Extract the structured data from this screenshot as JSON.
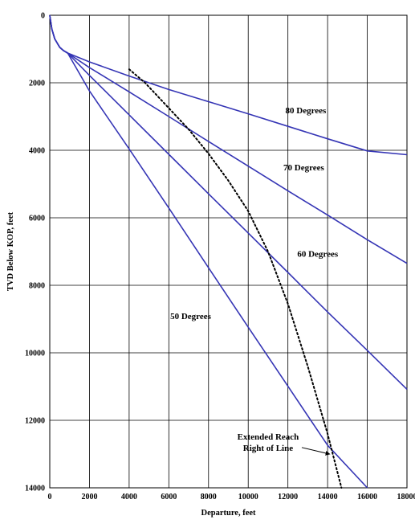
{
  "chart_data": {
    "type": "line",
    "title": "",
    "xlabel": "Departure, feet",
    "ylabel": "TVD Below KOP, feet",
    "xlim": [
      0,
      18000
    ],
    "ylim": [
      0,
      14000
    ],
    "y_inverted": true,
    "grid": true,
    "x_ticks": [
      "0",
      "2000",
      "4000",
      "6000",
      "8000",
      "10000",
      "12000",
      "14000",
      "16000",
      "18000"
    ],
    "y_ticks": [
      "0",
      "2000",
      "4000",
      "6000",
      "8000",
      "10000",
      "12000",
      "14000"
    ],
    "series": [
      {
        "name": "80 Degrees",
        "color": "#3535b5",
        "style": "solid",
        "x": [
          0,
          100,
          250,
          500,
          700,
          900,
          2000,
          4000,
          6000,
          8000,
          10000,
          12000,
          14000,
          16000,
          18000
        ],
        "y": [
          0,
          400,
          700,
          950,
          1050,
          1120,
          1380,
          1800,
          2200,
          2560,
          2920,
          3290,
          3660,
          4020,
          4130
        ]
      },
      {
        "name": "70 Degrees",
        "color": "#3535b5",
        "style": "solid",
        "x": [
          0,
          100,
          250,
          500,
          700,
          900,
          2000,
          4000,
          6000,
          8000,
          10000,
          12000,
          14000,
          16000,
          18000
        ],
        "y": [
          0,
          400,
          700,
          950,
          1050,
          1120,
          1550,
          2270,
          3000,
          3740,
          4470,
          5200,
          5920,
          6650,
          7350
        ]
      },
      {
        "name": "60 Degrees",
        "color": "#3535b5",
        "style": "solid",
        "x": [
          0,
          100,
          250,
          500,
          700,
          900,
          2000,
          4000,
          6000,
          8000,
          10000,
          12000,
          14000,
          16000,
          18000
        ],
        "y": [
          0,
          400,
          700,
          950,
          1050,
          1120,
          1780,
          2950,
          4120,
          5290,
          6450,
          7620,
          8790,
          9930,
          11080
        ]
      },
      {
        "name": "50 Degrees",
        "color": "#3535b5",
        "style": "solid",
        "x": [
          0,
          100,
          250,
          500,
          700,
          900,
          2000,
          4000,
          6000,
          8000,
          10000,
          12000,
          14000,
          16000
        ],
        "y": [
          0,
          400,
          700,
          950,
          1050,
          1120,
          2240,
          3960,
          5710,
          7480,
          9240,
          10990,
          12740,
          14000
        ]
      },
      {
        "name": "Extended Reach Right of Line",
        "color": "#000000",
        "style": "dotted",
        "x": [
          4000,
          4800,
          6000,
          7000,
          8000,
          9000,
          10000,
          11000,
          12000,
          13000,
          14000,
          14700
        ],
        "y": [
          1600,
          2000,
          2750,
          3380,
          4100,
          4900,
          5800,
          7000,
          8550,
          10400,
          12400,
          14000
        ]
      }
    ],
    "labels": [
      {
        "text": "80 Degrees",
        "x": 12900,
        "y": 2900
      },
      {
        "text": "70 Degrees",
        "x": 12800,
        "y": 4600
      },
      {
        "text": "60 Degrees",
        "x": 13500,
        "y": 7150
      },
      {
        "text": "50 Degrees",
        "x": 7100,
        "y": 9000
      }
    ],
    "annotation": {
      "lines": [
        "Extended Reach",
        "Right of Line"
      ],
      "anchor_x": 11000,
      "anchor_y": 12900,
      "arrow_to_x": 14100,
      "arrow_to_y": 13000
    }
  }
}
